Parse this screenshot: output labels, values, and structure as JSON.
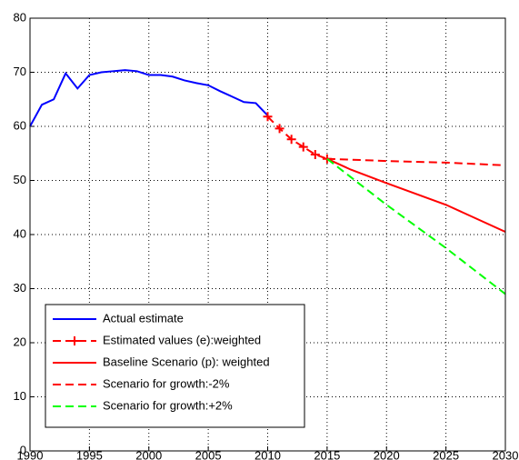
{
  "chart_data": {
    "type": "line",
    "xlim": [
      1990,
      2030
    ],
    "xticks": [
      1990,
      1995,
      2000,
      2005,
      2010,
      2015,
      2020,
      2025,
      2030
    ],
    "ylim": [
      0,
      80
    ],
    "yticks": [
      0,
      10,
      20,
      30,
      40,
      50,
      60,
      70,
      80
    ],
    "grid": true,
    "legend": "lower left",
    "series": [
      {
        "name": "Actual estimate",
        "color": "#0000ff",
        "linestyle": "solid",
        "marker": "none",
        "x": [
          1990,
          1991,
          1992,
          1993,
          1994,
          1995,
          1996,
          1997,
          1998,
          1999,
          2000,
          2001,
          2002,
          2003,
          2004,
          2005,
          2006,
          2007,
          2008,
          2009,
          2010
        ],
        "values": [
          60,
          64,
          65,
          69.8,
          67,
          69.5,
          70,
          70.2,
          70.4,
          70.2,
          69.5,
          69.5,
          69.2,
          68.5,
          68,
          67.6,
          66.5,
          65.5,
          64.5,
          64.3,
          62
        ]
      },
      {
        "name": "Estimated values (e):weighted",
        "color": "#ff0000",
        "linestyle": "dashed",
        "marker": "plus",
        "x": [
          2010,
          2011,
          2012,
          2013,
          2014,
          2015
        ],
        "values": [
          61.8,
          59.6,
          57.6,
          56.2,
          54.8,
          54
        ]
      },
      {
        "name": "Baseline Scenario (p): weighted",
        "color": "#ff0000",
        "linestyle": "solid",
        "marker": "none",
        "x": [
          2015,
          2017,
          2020,
          2025,
          2030
        ],
        "values": [
          54,
          52,
          49.5,
          45.5,
          40.5
        ]
      },
      {
        "name": "Scenario for growth:-2%",
        "color": "#ff0000",
        "linestyle": "dashed",
        "marker": "none",
        "x": [
          2015,
          2020,
          2025,
          2030
        ],
        "values": [
          54,
          53.6,
          53.3,
          52.8
        ]
      },
      {
        "name": "Scenario for growth:+2%",
        "color": "#00ff00",
        "linestyle": "dashed",
        "marker": "none",
        "x": [
          2015,
          2020,
          2025,
          2030
        ],
        "values": [
          54,
          45.5,
          37.5,
          29
        ]
      }
    ]
  }
}
